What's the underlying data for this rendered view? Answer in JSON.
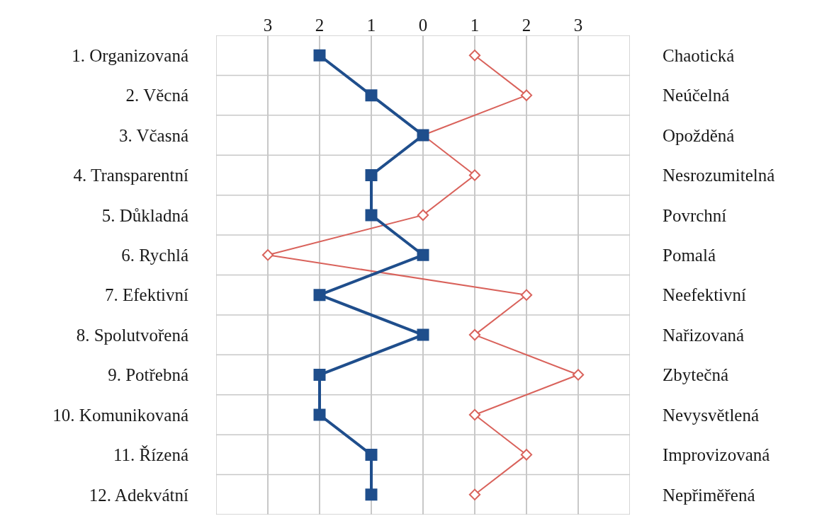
{
  "chart_data": {
    "type": "line",
    "orientation": "horizontal",
    "categories": [
      "1. Organizovaná",
      "2. Věcná",
      "3. Včasná",
      "4. Transparentní",
      "5. Důkladná",
      "6. Rychlá",
      "7. Efektivní",
      "8. Spolutvořená",
      "9. Potřebná",
      "10. Komunikovaná",
      "11. Řízená",
      "12. Adekvátní"
    ],
    "y2_categories": [
      "Chaotická",
      "Neúčelná",
      "Opožděná",
      "Nesrozumitelná",
      "Povrchní",
      "Pomalá",
      "Neefektivní",
      "Nařizovaná",
      "Zbytečná",
      "Nevysvětlená",
      "Improvizovaná",
      "Nepřiměřená"
    ],
    "xlim": [
      -4,
      4
    ],
    "xticks": [
      {
        "value": -4,
        "label": null
      },
      {
        "value": -3,
        "label": "3"
      },
      {
        "value": -2,
        "label": "2"
      },
      {
        "value": -1,
        "label": "1"
      },
      0,
      1,
      2,
      3,
      {
        "value": 4,
        "label": null
      }
    ],
    "grid": true,
    "series": [
      {
        "color": "#1f4e8c",
        "marker": "square",
        "values": [
          -2,
          -1,
          0,
          -1,
          -1,
          0,
          -2,
          0,
          -2,
          -2,
          -1,
          -1
        ]
      },
      {
        "color": "#d9625b",
        "marker": "diamond",
        "values": [
          1,
          2,
          0,
          1,
          0,
          -3,
          2,
          1,
          3,
          1,
          2,
          1
        ]
      }
    ]
  }
}
